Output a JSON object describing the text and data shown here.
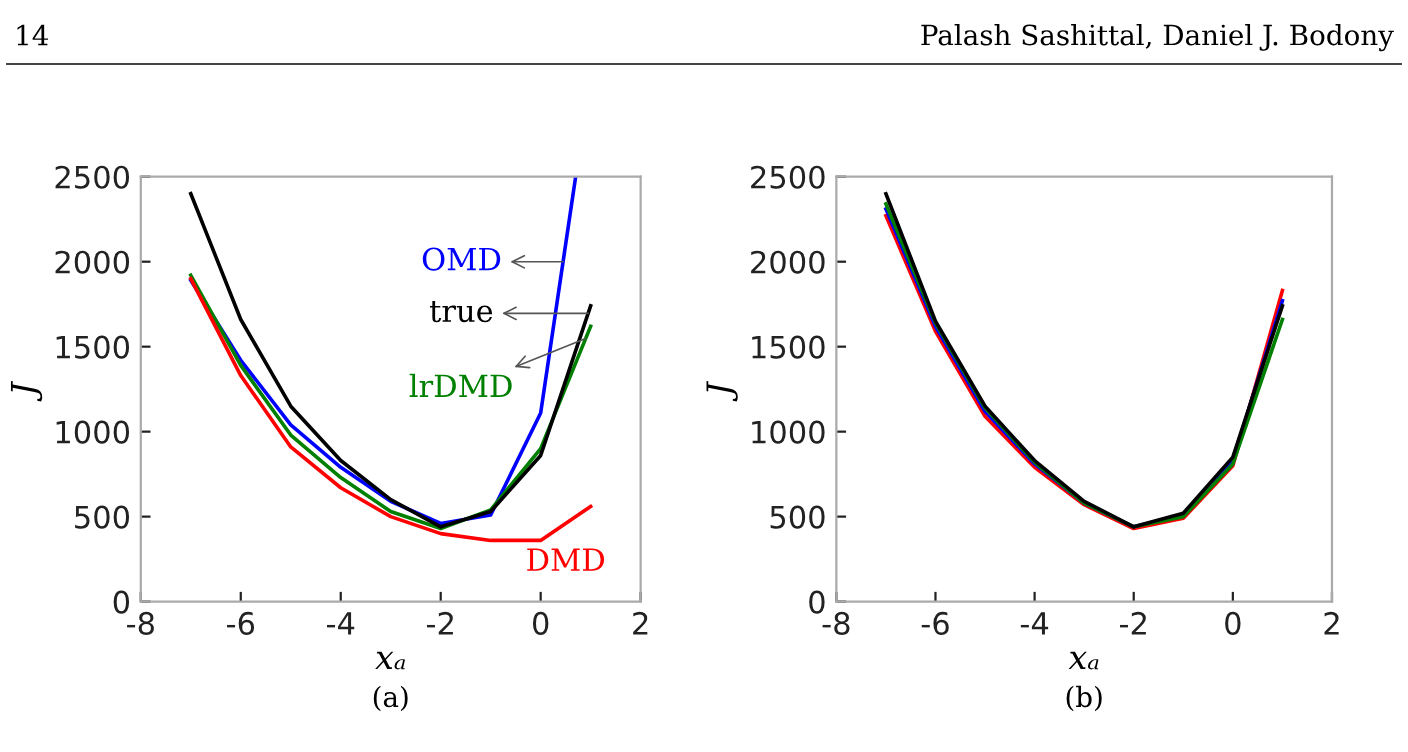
{
  "chart_data": [
    {
      "type": "line",
      "xlabel": "xₐ",
      "ylabel": "J",
      "x": [
        -7,
        -6,
        -5,
        -4,
        -3,
        -2,
        -1,
        0,
        1
      ],
      "xlim": [
        -8,
        2
      ],
      "xticks": [
        -8,
        -6,
        -4,
        -2,
        0,
        2
      ],
      "ylim": [
        0,
        2500
      ],
      "yticks": [
        0,
        500,
        1000,
        1500,
        2000,
        2500
      ],
      "grid": false,
      "legend": false,
      "series": [
        {
          "name": "OMD",
          "color": "#0000ff",
          "x": [
            -7,
            -6,
            -5,
            -4,
            -3,
            -2,
            -1,
            0,
            0.7
          ],
          "values": [
            1890,
            1420,
            1040,
            790,
            590,
            460,
            510,
            1110,
            2500
          ]
        },
        {
          "name": "lrDMD",
          "color": "#008000",
          "values": [
            1920,
            1390,
            980,
            730,
            530,
            430,
            540,
            900,
            1620
          ]
        },
        {
          "name": "DMD",
          "color": "#ff0000",
          "values": [
            1900,
            1330,
            910,
            670,
            500,
            400,
            360,
            360,
            560
          ]
        },
        {
          "name": "true",
          "color": "#000000",
          "values": [
            2400,
            1660,
            1150,
            830,
            600,
            440,
            530,
            860,
            1740
          ]
        }
      ],
      "annotations": [
        "(a)",
        "14",
        "Palash Sashittal, Daniel J. Bodony"
      ]
    },
    {
      "type": "line",
      "xlabel": "xₐ",
      "ylabel": "J",
      "x": [
        -7,
        -6,
        -5,
        -4,
        -3,
        -2,
        -1,
        0,
        1
      ],
      "xlim": [
        -8,
        2
      ],
      "xticks": [
        -8,
        -6,
        -4,
        -2,
        0,
        2
      ],
      "ylim": [
        0,
        2500
      ],
      "yticks": [
        0,
        500,
        1000,
        1500,
        2000,
        2500
      ],
      "grid": false,
      "legend": false,
      "series": [
        {
          "color": "#ff0000",
          "values": [
            2270,
            1590,
            1090,
            790,
            570,
            430,
            490,
            800,
            1830
          ]
        },
        {
          "color": "#0000ff",
          "values": [
            2310,
            1620,
            1120,
            810,
            580,
            440,
            510,
            830,
            1770
          ]
        },
        {
          "color": "#008000",
          "values": [
            2340,
            1640,
            1140,
            820,
            580,
            440,
            500,
            810,
            1660
          ]
        },
        {
          "color": "#000000",
          "values": [
            2400,
            1650,
            1150,
            830,
            590,
            440,
            520,
            850,
            1740
          ]
        }
      ],
      "annotations": [
        "(b)"
      ]
    }
  ]
}
